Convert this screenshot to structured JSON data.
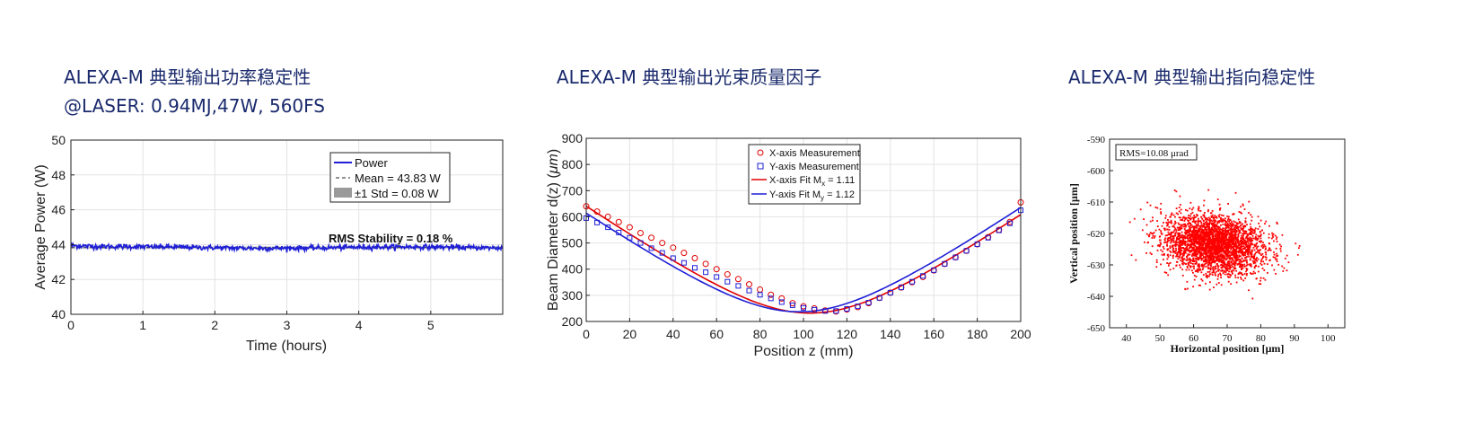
{
  "titles": {
    "power_line1": "ALEXA-M 典型输出功率稳定性",
    "power_line2": "@LASER: 0.94MJ,47W, 560FS",
    "beam": "ALEXA-M 典型输出光束质量因子",
    "pointing": "ALEXA-M 典型输出指向稳定性"
  },
  "chart_data": [
    {
      "type": "line",
      "xlabel": "Time (hours)",
      "ylabel": "Average Power (W)",
      "xlim": [
        0,
        6
      ],
      "ylim": [
        40,
        50
      ],
      "xticks": [
        0,
        1,
        2,
        3,
        4,
        5
      ],
      "yticks": [
        40,
        42,
        44,
        46,
        48,
        50
      ],
      "grid": true,
      "legend_position": "top-right",
      "legend": [
        "Power",
        "Mean = 43.83 W",
        "±1 Std = 0.08 W"
      ],
      "annotation": "RMS Stability = 0.18 %",
      "series": [
        {
          "name": "Power",
          "mean": 43.83,
          "std": 0.08,
          "color": "#1f1fd6"
        }
      ]
    },
    {
      "type": "scatter",
      "xlabel": "Position z (mm)",
      "ylabel_main": "Beam Diameter d(z) (",
      "ylabel_unit": "μm",
      "ylabel_end": ")",
      "xlim": [
        0,
        200
      ],
      "ylim": [
        200,
        900
      ],
      "xticks": [
        0,
        20,
        40,
        60,
        80,
        100,
        120,
        140,
        160,
        180,
        200
      ],
      "yticks": [
        200,
        300,
        400,
        500,
        600,
        700,
        800,
        900
      ],
      "grid": true,
      "legend_position": "top-center",
      "legend": {
        "x_meas": "X-axis Measurement",
        "y_meas": "Y-axis Measurement",
        "x_fit": "X-axis Fit  M",
        "x_fit_sub": "x",
        "x_fit_val": " = 1.11",
        "y_fit": "Y-axis Fit  M",
        "y_fit_sub": "y",
        "y_fit_val": " = 1.12"
      },
      "x_fit": {
        "w0": 232,
        "z0": 103,
        "zr": 40,
        "color": "#e00000"
      },
      "y_fit": {
        "w0": 237,
        "z0": 98,
        "zr": 41,
        "color": "#1f1fd6"
      },
      "series": [
        {
          "name": "X-axis Measurement",
          "color": "#e00000",
          "marker": "circle",
          "x": [
            0,
            5,
            10,
            15,
            20,
            25,
            30,
            35,
            40,
            45,
            50,
            55,
            60,
            65,
            70,
            75,
            80,
            85,
            90,
            95,
            100,
            105,
            110,
            115,
            120,
            125,
            130,
            135,
            140,
            145,
            150,
            155,
            160,
            165,
            170,
            175,
            180,
            185,
            190,
            195,
            200
          ],
          "y": [
            640,
            620,
            600,
            580,
            560,
            538,
            520,
            500,
            482,
            462,
            442,
            420,
            400,
            380,
            362,
            342,
            322,
            302,
            288,
            270,
            258,
            250,
            242,
            238,
            246,
            255,
            270,
            290,
            310,
            330,
            350,
            370,
            395,
            420,
            445,
            470,
            495,
            522,
            550,
            580,
            655
          ]
        },
        {
          "name": "Y-axis Measurement",
          "color": "#1f1fd6",
          "marker": "square",
          "x": [
            0,
            5,
            10,
            15,
            20,
            25,
            30,
            35,
            40,
            45,
            50,
            55,
            60,
            65,
            70,
            75,
            80,
            85,
            90,
            95,
            100,
            105,
            110,
            115,
            120,
            125,
            130,
            135,
            140,
            145,
            150,
            155,
            160,
            165,
            170,
            175,
            180,
            185,
            190,
            195,
            200
          ],
          "y": [
            595,
            578,
            560,
            540,
            520,
            500,
            480,
            462,
            442,
            424,
            405,
            388,
            370,
            352,
            336,
            318,
            302,
            288,
            274,
            262,
            252,
            245,
            240,
            240,
            248,
            258,
            272,
            290,
            310,
            330,
            352,
            374,
            396,
            420,
            445,
            470,
            495,
            520,
            548,
            575,
            625
          ]
        }
      ]
    },
    {
      "type": "scatter",
      "xlabel": "Horizontal position [μm]",
      "ylabel": "Vertical position [μm]",
      "xlim": [
        35,
        105
      ],
      "ylim": [
        -650,
        -590
      ],
      "xticks": [
        40,
        50,
        60,
        70,
        80,
        90,
        100
      ],
      "yticks": [
        -590,
        -600,
        -610,
        -620,
        -630,
        -640,
        -650
      ],
      "annotation": "RMS=10.08 μrad",
      "series": [
        {
          "center_x": 66,
          "center_y": -623.5,
          "sd_x": 7.5,
          "sd_y": 4.5,
          "count": 3000,
          "color": "#ff0000"
        }
      ]
    }
  ]
}
